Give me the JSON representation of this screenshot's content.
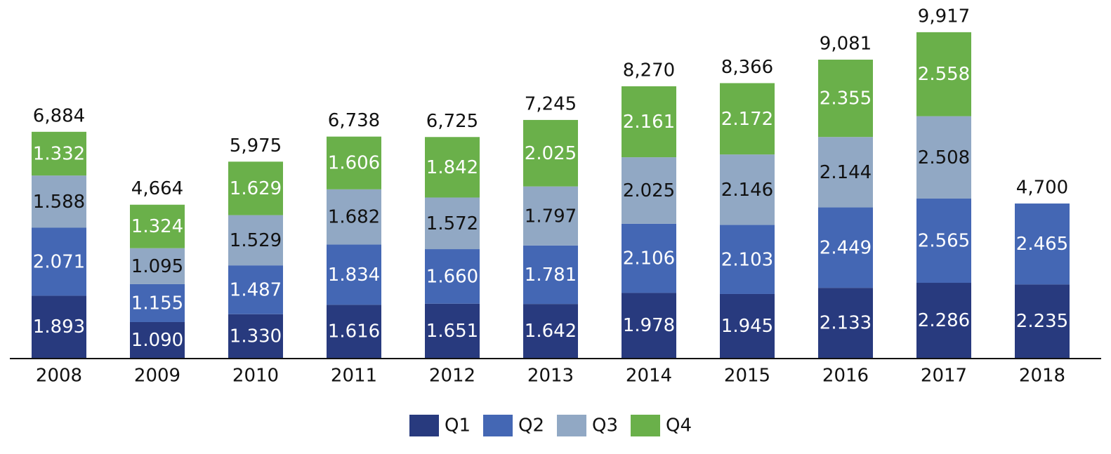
{
  "chart_data": {
    "type": "bar",
    "stacked": true,
    "categories": [
      "2008",
      "2009",
      "2010",
      "2011",
      "2012",
      "2013",
      "2014",
      "2015",
      "2016",
      "2017",
      "2018"
    ],
    "series": [
      {
        "name": "Q1",
        "color": "#283a7e",
        "label_color": "#ffffff",
        "values": [
          1893,
          1090,
          1330,
          1616,
          1651,
          1642,
          1978,
          1945,
          2133,
          2286,
          2235
        ],
        "value_labels": [
          "1.893",
          "1.090",
          "1.330",
          "1.616",
          "1.651",
          "1.642",
          "1.978",
          "1.945",
          "2.133",
          "2.286",
          "2.235"
        ]
      },
      {
        "name": "Q2",
        "color": "#4467b4",
        "label_color": "#ffffff",
        "values": [
          2071,
          1155,
          1487,
          1834,
          1660,
          1781,
          2106,
          2103,
          2449,
          2565,
          2465
        ],
        "value_labels": [
          "2.071",
          "1.155",
          "1.487",
          "1.834",
          "1.660",
          "1.781",
          "2.106",
          "2.103",
          "2.449",
          "2.565",
          "2.465"
        ]
      },
      {
        "name": "Q3",
        "color": "#91a8c4",
        "label_color": "#111111",
        "values": [
          1588,
          1095,
          1529,
          1682,
          1572,
          1797,
          2025,
          2146,
          2144,
          2508,
          null
        ],
        "value_labels": [
          "1.588",
          "1.095",
          "1.529",
          "1.682",
          "1.572",
          "1.797",
          "2.025",
          "2.146",
          "2.144",
          "2.508",
          null
        ]
      },
      {
        "name": "Q4",
        "color": "#6ab04a",
        "label_color": "#ffffff",
        "values": [
          1332,
          1324,
          1629,
          1606,
          1842,
          2025,
          2161,
          2172,
          2355,
          2558,
          null
        ],
        "value_labels": [
          "1.332",
          "1.324",
          "1.629",
          "1.606",
          "1.842",
          "2.025",
          "2.161",
          "2.172",
          "2.355",
          "2.558",
          null
        ]
      }
    ],
    "totals": [
      6884,
      4664,
      5975,
      6738,
      6725,
      7245,
      8270,
      8366,
      9081,
      9917,
      4700
    ],
    "total_labels": [
      "6,884",
      "4,664",
      "5,975",
      "6,738",
      "6,725",
      "7,245",
      "8,270",
      "8,366",
      "9,081",
      "9,917",
      "4,700"
    ],
    "legend": "bottom"
  }
}
